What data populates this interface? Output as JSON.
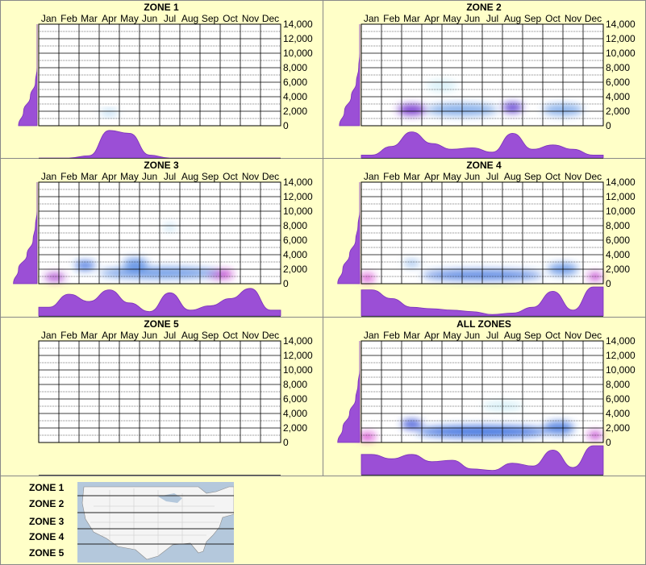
{
  "chart_data": [
    {
      "type": "heatmap",
      "title": "ZONE 1",
      "months": [
        "Jan",
        "Feb",
        "Mar",
        "Apr",
        "May",
        "Jun",
        "Jul",
        "Aug",
        "Sep",
        "Oct",
        "Nov",
        "Dec"
      ],
      "y_ticks": [
        "14,000",
        "12,000",
        "10,000",
        "8,000",
        "6,000",
        "4,000",
        "2,000",
        "0"
      ],
      "ylim": [
        0,
        14000
      ],
      "monthly_profile": [
        0,
        0,
        0.08,
        0.95,
        0.85,
        0.1,
        0,
        0,
        0,
        0,
        0,
        0
      ],
      "elevation_profile": [
        0.55,
        0.4,
        0.2,
        0.05,
        0,
        0,
        0,
        0
      ],
      "hotspots": [
        {
          "month": 3.5,
          "elev": 1800,
          "w": 0.9,
          "h": 900,
          "v": 0.18
        }
      ]
    },
    {
      "type": "heatmap",
      "title": "ZONE 2",
      "months": [
        "Jan",
        "Feb",
        "Mar",
        "Apr",
        "May",
        "Jun",
        "Jul",
        "Aug",
        "Sep",
        "Oct",
        "Nov",
        "Dec"
      ],
      "y_ticks": [
        "14,000",
        "12,000",
        "10,000",
        "8,000",
        "6,000",
        "4,000",
        "2,000",
        "0"
      ],
      "ylim": [
        0,
        14000
      ],
      "monthly_profile": [
        0.1,
        0.4,
        0.9,
        0.5,
        0.3,
        0.35,
        0.2,
        0.85,
        0.3,
        0.45,
        0.3,
        0.1
      ],
      "elevation_profile": [
        0.6,
        0.45,
        0.25,
        0.1,
        0.03,
        0,
        0,
        0
      ],
      "hotspots": [
        {
          "month": 2.5,
          "elev": 2200,
          "w": 1.4,
          "h": 1400,
          "v": 0.75
        },
        {
          "month": 7.5,
          "elev": 2500,
          "w": 1.0,
          "h": 1300,
          "v": 0.7
        },
        {
          "month": 5,
          "elev": 2200,
          "w": 3.5,
          "h": 1600,
          "v": 0.35
        },
        {
          "month": 10,
          "elev": 2200,
          "w": 2.0,
          "h": 1500,
          "v": 0.35
        },
        {
          "month": 4,
          "elev": 5500,
          "w": 1.5,
          "h": 1500,
          "v": 0.06
        }
      ]
    },
    {
      "type": "heatmap",
      "title": "ZONE 3",
      "months": [
        "Jan",
        "Feb",
        "Mar",
        "Apr",
        "May",
        "Jun",
        "Jul",
        "Aug",
        "Sep",
        "Oct",
        "Nov",
        "Dec"
      ],
      "y_ticks": [
        "14,000",
        "12,000",
        "10,000",
        "8,000",
        "6,000",
        "4,000",
        "2,000",
        "0"
      ],
      "ylim": [
        0,
        14000
      ],
      "monthly_profile": [
        0.3,
        0.75,
        0.5,
        0.9,
        0.45,
        0.15,
        0.8,
        0.2,
        0.35,
        0.6,
        0.95,
        0.2
      ],
      "elevation_profile": [
        0.7,
        0.55,
        0.3,
        0.12,
        0.05,
        0,
        0,
        0
      ],
      "hotspots": [
        {
          "month": 0.8,
          "elev": 900,
          "w": 1.0,
          "h": 900,
          "v": 0.85
        },
        {
          "month": 2.3,
          "elev": 2500,
          "w": 1.0,
          "h": 1200,
          "v": 0.5
        },
        {
          "month": 4.8,
          "elev": 2800,
          "w": 1.2,
          "h": 1500,
          "v": 0.4
        },
        {
          "month": 9,
          "elev": 1300,
          "w": 1.3,
          "h": 1000,
          "v": 0.9
        },
        {
          "month": 6.5,
          "elev": 7800,
          "w": 0.6,
          "h": 900,
          "v": 0.15
        },
        {
          "month": 6,
          "elev": 1500,
          "w": 6,
          "h": 1500,
          "v": 0.4
        }
      ]
    },
    {
      "type": "heatmap",
      "title": "ZONE 4",
      "months": [
        "Jan",
        "Feb",
        "Mar",
        "Apr",
        "May",
        "Jun",
        "Jul",
        "Aug",
        "Sep",
        "Oct",
        "Nov",
        "Dec"
      ],
      "y_ticks": [
        "14,000",
        "12,000",
        "10,000",
        "8,000",
        "6,000",
        "4,000",
        "2,000",
        "0"
      ],
      "ylim": [
        0,
        14000
      ],
      "monthly_profile": [
        0.9,
        0.6,
        0.3,
        0.25,
        0.2,
        0.15,
        0.05,
        0.1,
        0.3,
        0.85,
        0.2,
        1.0
      ],
      "elevation_profile": [
        0.65,
        0.5,
        0.3,
        0.12,
        0.05,
        0,
        0,
        0
      ],
      "hotspots": [
        {
          "month": 0.3,
          "elev": 800,
          "w": 0.7,
          "h": 900,
          "v": 0.95
        },
        {
          "month": 11.6,
          "elev": 1000,
          "w": 0.7,
          "h": 900,
          "v": 0.9
        },
        {
          "month": 2.5,
          "elev": 2800,
          "w": 0.8,
          "h": 900,
          "v": 0.3
        },
        {
          "month": 6,
          "elev": 1200,
          "w": 6,
          "h": 1400,
          "v": 0.45
        },
        {
          "month": 10,
          "elev": 2000,
          "w": 1.5,
          "h": 1600,
          "v": 0.4
        }
      ]
    },
    {
      "type": "heatmap",
      "title": "ZONE 5",
      "months": [
        "Jan",
        "Feb",
        "Mar",
        "Apr",
        "May",
        "Jun",
        "Jul",
        "Aug",
        "Sep",
        "Oct",
        "Nov",
        "Dec"
      ],
      "y_ticks": [
        "14,000",
        "12,000",
        "10,000",
        "8,000",
        "6,000",
        "4,000",
        "2,000",
        "0"
      ],
      "ylim": [
        0,
        14000
      ],
      "monthly_profile": [
        0,
        0,
        0,
        0,
        0,
        0,
        0,
        0,
        0,
        0,
        0,
        0
      ],
      "elevation_profile": [
        0,
        0,
        0,
        0,
        0,
        0,
        0,
        0
      ],
      "hotspots": []
    },
    {
      "type": "heatmap",
      "title": "ALL ZONES",
      "months": [
        "Jan",
        "Feb",
        "Mar",
        "Apr",
        "May",
        "Jun",
        "Jul",
        "Aug",
        "Sep",
        "Oct",
        "Nov",
        "Dec"
      ],
      "y_ticks": [
        "14,000",
        "12,000",
        "10,000",
        "8,000",
        "6,000",
        "4,000",
        "2,000",
        "0"
      ],
      "ylim": [
        0,
        14000
      ],
      "monthly_profile": [
        0.7,
        0.55,
        0.7,
        0.45,
        0.5,
        0.2,
        0.15,
        0.4,
        0.3,
        0.85,
        0.25,
        1.0
      ],
      "elevation_profile": [
        0.65,
        0.5,
        0.3,
        0.12,
        0.05,
        0,
        0,
        0
      ],
      "hotspots": [
        {
          "month": 0.3,
          "elev": 800,
          "w": 0.8,
          "h": 900,
          "v": 0.95
        },
        {
          "month": 11.6,
          "elev": 1000,
          "w": 0.7,
          "h": 900,
          "v": 0.9
        },
        {
          "month": 2.5,
          "elev": 2500,
          "w": 1.0,
          "h": 1200,
          "v": 0.6
        },
        {
          "month": 6,
          "elev": 1500,
          "w": 6.5,
          "h": 1600,
          "v": 0.5
        },
        {
          "month": 9.8,
          "elev": 2000,
          "w": 1.5,
          "h": 1800,
          "v": 0.45
        },
        {
          "month": 7,
          "elev": 5000,
          "w": 2,
          "h": 1200,
          "v": 0.08
        }
      ]
    }
  ],
  "legend": {
    "zones": [
      "ZONE 1",
      "ZONE 2",
      "ZONE 3",
      "ZONE 4",
      "ZONE 5"
    ]
  },
  "colors": {
    "background": "#ffffc8",
    "profile_fill": "#9b4fd6",
    "profile_stroke": "#7a30bb",
    "heat_low": "#aef0f0",
    "heat_mid": "#1a4fd8",
    "heat_high": "#e010c0"
  }
}
